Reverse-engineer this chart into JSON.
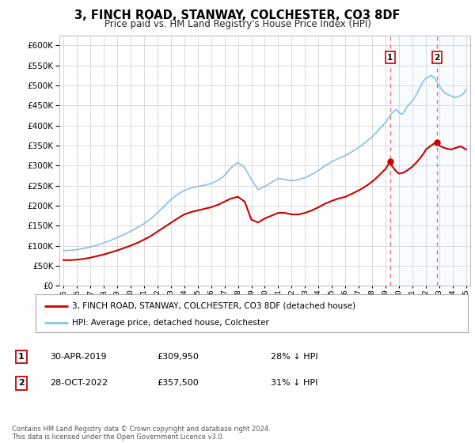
{
  "title": "3, FINCH ROAD, STANWAY, COLCHESTER, CO3 8DF",
  "subtitle": "Price paid vs. HM Land Registry's House Price Index (HPI)",
  "hpi_label": "HPI: Average price, detached house, Colchester",
  "property_label": "3, FINCH ROAD, STANWAY, COLCHESTER, CO3 8DF (detached house)",
  "footnote": "Contains HM Land Registry data © Crown copyright and database right 2024.\nThis data is licensed under the Open Government Licence v3.0.",
  "transactions": [
    {
      "num": 1,
      "date": "30-APR-2019",
      "price": "£309,950",
      "pct": "28% ↓ HPI",
      "year": 2019.33
    },
    {
      "num": 2,
      "date": "28-OCT-2022",
      "price": "£357,500",
      "pct": "31% ↓ HPI",
      "year": 2022.83
    }
  ],
  "hpi_color": "#8ac0e0",
  "price_color": "#cc0000",
  "vline_color": "#cc0000",
  "background_color": "#ffffff",
  "grid_color": "#cccccc",
  "shade_color": "#ddeeff",
  "ylim": [
    0,
    625000
  ],
  "yticks": [
    0,
    50000,
    100000,
    150000,
    200000,
    250000,
    300000,
    350000,
    400000,
    450000,
    500000,
    550000,
    600000
  ],
  "xlim_start": 1994.7,
  "xlim_end": 2025.3,
  "hpi_years": [
    1995.0,
    1995.5,
    1996.0,
    1996.5,
    1997.0,
    1997.5,
    1998.0,
    1998.5,
    1999.0,
    1999.5,
    2000.0,
    2000.5,
    2001.0,
    2001.5,
    2002.0,
    2002.5,
    2003.0,
    2003.5,
    2004.0,
    2004.5,
    2005.0,
    2005.5,
    2006.0,
    2006.5,
    2007.0,
    2007.5,
    2008.0,
    2008.5,
    2009.0,
    2009.5,
    2010.0,
    2010.5,
    2011.0,
    2011.5,
    2012.0,
    2012.5,
    2013.0,
    2013.5,
    2014.0,
    2014.5,
    2015.0,
    2015.5,
    2016.0,
    2016.5,
    2017.0,
    2017.5,
    2018.0,
    2018.5,
    2019.0,
    2019.2,
    2019.4,
    2019.6,
    2019.8,
    2020.0,
    2020.2,
    2020.4,
    2020.6,
    2020.8,
    2021.0,
    2021.2,
    2021.4,
    2021.6,
    2021.8,
    2022.0,
    2022.2,
    2022.4,
    2022.6,
    2022.8,
    2023.0,
    2023.2,
    2023.4,
    2023.6,
    2023.8,
    2024.0,
    2024.2,
    2024.4,
    2024.6,
    2024.8,
    2025.0
  ],
  "hpi_values": [
    88000,
    88500,
    90000,
    93000,
    97000,
    101000,
    107000,
    113000,
    120000,
    128000,
    136000,
    145000,
    155000,
    167000,
    182000,
    198000,
    215000,
    228000,
    238000,
    244000,
    248000,
    251000,
    255000,
    263000,
    275000,
    295000,
    308000,
    295000,
    265000,
    240000,
    248000,
    258000,
    268000,
    265000,
    262000,
    265000,
    270000,
    278000,
    288000,
    300000,
    310000,
    318000,
    325000,
    335000,
    345000,
    358000,
    372000,
    390000,
    408000,
    418000,
    428000,
    435000,
    440000,
    432000,
    428000,
    435000,
    448000,
    455000,
    462000,
    472000,
    485000,
    498000,
    510000,
    518000,
    522000,
    525000,
    520000,
    510000,
    498000,
    490000,
    482000,
    478000,
    475000,
    472000,
    470000,
    472000,
    475000,
    480000,
    490000
  ],
  "prop_years": [
    1995.0,
    1995.5,
    1996.0,
    1996.5,
    1997.0,
    1997.5,
    1998.0,
    1998.5,
    1999.0,
    1999.5,
    2000.0,
    2000.5,
    2001.0,
    2001.5,
    2002.0,
    2002.5,
    2003.0,
    2003.5,
    2004.0,
    2004.5,
    2005.0,
    2005.5,
    2006.0,
    2006.5,
    2007.0,
    2007.5,
    2008.0,
    2008.5,
    2009.0,
    2009.5,
    2010.0,
    2010.5,
    2011.0,
    2011.5,
    2012.0,
    2012.5,
    2013.0,
    2013.5,
    2014.0,
    2014.5,
    2015.0,
    2015.5,
    2016.0,
    2016.5,
    2017.0,
    2017.5,
    2018.0,
    2018.5,
    2019.0,
    2019.33,
    2019.5,
    2019.8,
    2020.0,
    2020.3,
    2020.6,
    2020.9,
    2021.0,
    2021.3,
    2021.6,
    2021.9,
    2022.0,
    2022.3,
    2022.6,
    2022.83,
    2023.0,
    2023.3,
    2023.6,
    2023.9,
    2024.0,
    2024.3,
    2024.6,
    2025.0
  ],
  "prop_values": [
    64000,
    64000,
    65000,
    67000,
    70000,
    74000,
    78000,
    83000,
    88000,
    94000,
    100000,
    107000,
    115000,
    124000,
    135000,
    146000,
    157000,
    168000,
    178000,
    184000,
    188000,
    192000,
    196000,
    202000,
    210000,
    218000,
    222000,
    210000,
    165000,
    158000,
    168000,
    175000,
    182000,
    182000,
    178000,
    178000,
    182000,
    188000,
    196000,
    205000,
    212000,
    218000,
    222000,
    230000,
    238000,
    248000,
    260000,
    275000,
    292000,
    309950,
    298000,
    285000,
    280000,
    282000,
    288000,
    295000,
    298000,
    308000,
    320000,
    334000,
    340000,
    348000,
    355000,
    357500,
    350000,
    345000,
    342000,
    340000,
    342000,
    345000,
    348000,
    340000
  ]
}
